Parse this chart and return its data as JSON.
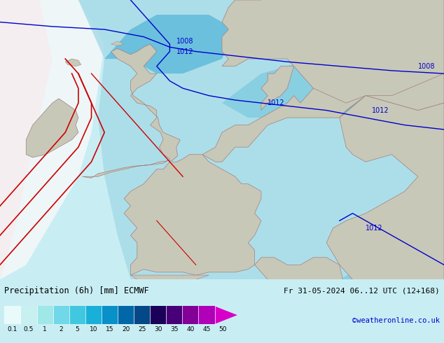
{
  "title_left": "Precipitation (6h) [mm] ECMWF",
  "title_right": "Fr 31-05-2024 06..12 UTC (12+168)",
  "credit": "©weatheronline.co.uk",
  "label_strs": [
    "0.1",
    "0.5",
    "1",
    "2",
    "5",
    "10",
    "15",
    "20",
    "25",
    "30",
    "35",
    "40",
    "45",
    "50"
  ],
  "cb_colors": [
    "#e8fafa",
    "#c8f0f0",
    "#a0e8e8",
    "#70d8e8",
    "#40c8e0",
    "#18b0d8",
    "#0890c8",
    "#0068a8",
    "#044888",
    "#1a0058",
    "#480078",
    "#820098",
    "#b000b8",
    "#d800c8"
  ],
  "sea_color": "#b8eaf0",
  "land_color": "#c8c8b8",
  "precip_light": "#a8dce8",
  "precip_med": "#80cce0",
  "precip_dark": "#50b4d8",
  "precip_strong": "#2898c8",
  "fig_width": 6.34,
  "fig_height": 4.9,
  "map_xlim": [
    -12,
    22
  ],
  "map_ylim": [
    43,
    62
  ],
  "background_color": "#c8eef4",
  "text_color_left": "#000000",
  "text_color_right": "#000000",
  "credit_color": "#0000cc",
  "isobar_blue": "#0000cc",
  "isobar_red": "#cc0000",
  "front_red": "#cc0000",
  "coast_color": "#a08080"
}
